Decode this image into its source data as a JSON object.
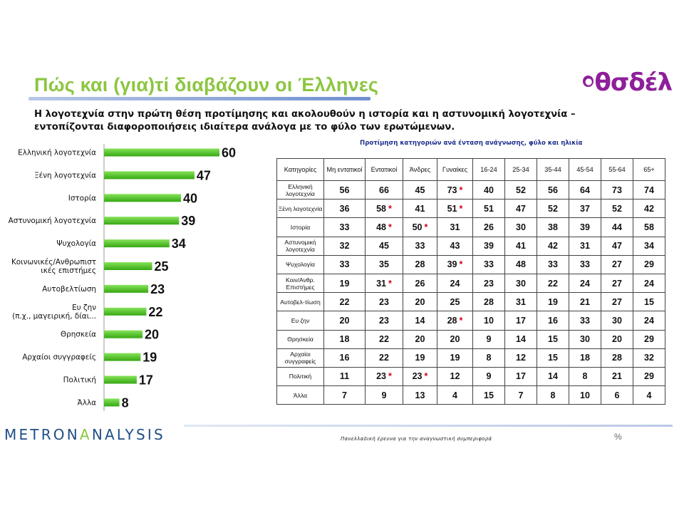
{
  "slide": {
    "title": "Πώς και (για)τί διαβάζουν οι Έλληνες",
    "logo_text": "θσδέλ",
    "subtitle": "Η λογοτεχνία στην πρώτη θέση προτίμησης και ακολουθούν η ιστορία και η αστυνομική λογοτεχνία – εντοπίζονται διαφοροποιήσεις ιδιαίτερα ανάλογα με το φύλο των ερωτώμενων.",
    "footer_brand_part1": "METRON",
    "footer_brand_part2": "A",
    "footer_brand_part3": "NALYSIS",
    "footer_note": "Πανελλαδική έρευνα για την αναγνωστική συμπεριφορά",
    "footer_icon": "%"
  },
  "colors": {
    "title": "#8cc63f",
    "bar_top": "#86e35a",
    "bar_bottom": "#36a812",
    "logo": "#8e1f9a",
    "star": "#d0021b"
  },
  "chart_data": [
    {
      "type": "bar",
      "orientation": "horizontal",
      "categories": [
        "Ελληνική λογοτεχνία",
        "Ξένη λογοτεχνία",
        "Ιστορία",
        "Αστυνομική λογοτεχνία",
        "Ψυχολογία",
        [
          "Κοινωνικές/Ανθρωπιστ",
          "ικές επιστήμες"
        ],
        "Αυτοβελτίωση",
        [
          "Ευ ζην",
          "(π.χ., μαγειρική, δίαι..."
        ],
        "Θρησκεία",
        "Αρχαίοι συγγραφείς",
        "Πολιτική",
        "Άλλα"
      ],
      "values": [
        60,
        47,
        40,
        39,
        34,
        25,
        23,
        22,
        20,
        19,
        17,
        8
      ],
      "title": "",
      "xlabel": "",
      "ylabel": "",
      "xlim": [
        0,
        60
      ],
      "grid": false,
      "legend": "none"
    },
    {
      "type": "table",
      "caption": "Προτίμηση κατηγοριών ανά ένταση ανάγνωσης, φύλο και ηλικία",
      "columns": [
        "Κατηγορίες",
        "Μη εντατικοί",
        "Εντατικοί",
        "Άνδρες",
        "Γυναίκες",
        "16-24",
        "25-34",
        "35-44",
        "45-54",
        "55-64",
        "65+"
      ],
      "rows": [
        {
          "label": "Ελληνική λογοτεχνία",
          "values": [
            "56",
            "66",
            "45",
            "73",
            "40",
            "52",
            "56",
            "64",
            "73",
            "74"
          ],
          "starred": [
            3
          ]
        },
        {
          "label": "Ξένη λογοτεχνία",
          "values": [
            "36",
            "58",
            "41",
            "51",
            "51",
            "47",
            "52",
            "37",
            "52",
            "42"
          ],
          "starred": [
            1,
            3
          ]
        },
        {
          "label": "Ιστορία",
          "values": [
            "33",
            "48",
            "50",
            "31",
            "26",
            "30",
            "38",
            "39",
            "44",
            "58"
          ],
          "starred": [
            1,
            2
          ]
        },
        {
          "label": "Αστυνομική λογοτεχνία",
          "values": [
            "32",
            "45",
            "33",
            "43",
            "39",
            "41",
            "42",
            "31",
            "47",
            "34"
          ],
          "starred": []
        },
        {
          "label": "Ψυχολογία",
          "values": [
            "33",
            "35",
            "28",
            "39",
            "33",
            "48",
            "33",
            "33",
            "27",
            "29"
          ],
          "starred": [
            3
          ]
        },
        {
          "label": "Κοιν/Ανθρ. Επιστήμες",
          "values": [
            "19",
            "31",
            "26",
            "24",
            "23",
            "30",
            "22",
            "24",
            "27",
            "24"
          ],
          "starred": [
            1
          ]
        },
        {
          "label": "Αυτοβελ-τίωση",
          "values": [
            "22",
            "23",
            "20",
            "25",
            "28",
            "31",
            "19",
            "21",
            "27",
            "15"
          ],
          "starred": []
        },
        {
          "label": "Ευ ζην",
          "values": [
            "20",
            "23",
            "14",
            "28",
            "10",
            "17",
            "16",
            "33",
            "30",
            "24"
          ],
          "starred": [
            3
          ]
        },
        {
          "label": "Θρησκεία",
          "values": [
            "18",
            "22",
            "20",
            "20",
            "9",
            "14",
            "15",
            "30",
            "20",
            "29"
          ],
          "starred": []
        },
        {
          "label": "Αρχαίοι συγγραφείς",
          "values": [
            "16",
            "22",
            "19",
            "19",
            "8",
            "12",
            "15",
            "18",
            "28",
            "32"
          ],
          "starred": []
        },
        {
          "label": "Πολιτική",
          "values": [
            "11",
            "23",
            "23",
            "12",
            "9",
            "17",
            "14",
            "8",
            "21",
            "29"
          ],
          "starred": [
            1,
            2
          ]
        },
        {
          "label": "Άλλα",
          "values": [
            "7",
            "9",
            "13",
            "4",
            "15",
            "7",
            "8",
            "10",
            "6",
            "4"
          ],
          "starred": []
        }
      ],
      "star_symbol": "*"
    }
  ]
}
